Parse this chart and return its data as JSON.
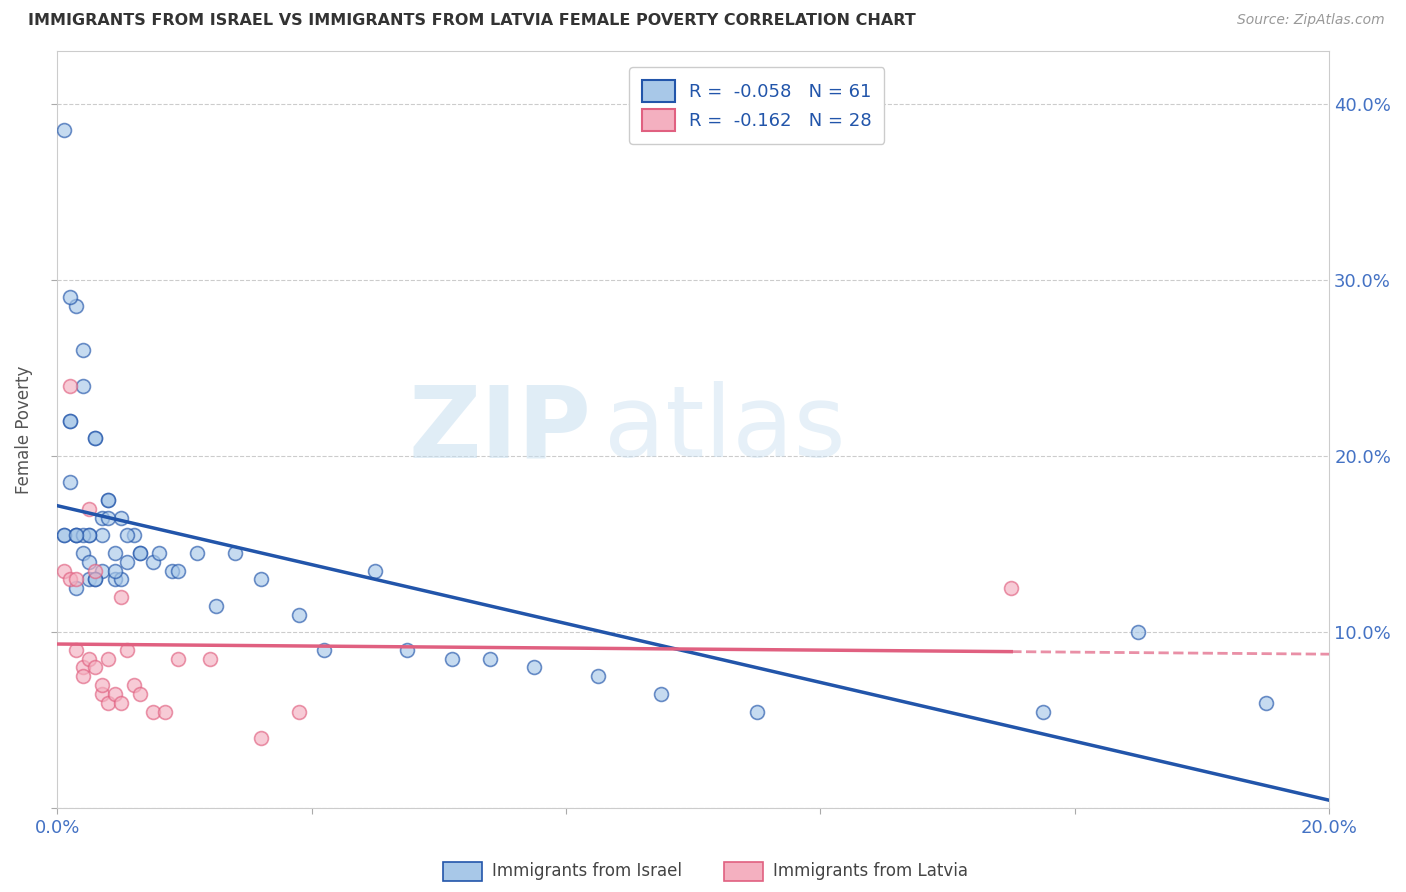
{
  "title": "IMMIGRANTS FROM ISRAEL VS IMMIGRANTS FROM LATVIA FEMALE POVERTY CORRELATION CHART",
  "source": "Source: ZipAtlas.com",
  "ylabel": "Female Poverty",
  "r_israel": -0.058,
  "n_israel": 61,
  "r_latvia": -0.162,
  "n_latvia": 28,
  "color_israel": "#a8c8e8",
  "color_latvia": "#f4b0c0",
  "color_israel_line": "#2255aa",
  "color_latvia_line": "#e06080",
  "watermark_zip": "ZIP",
  "watermark_atlas": "atlas",
  "israel_x": [
    0.005,
    0.012,
    0.008,
    0.01,
    0.007,
    0.009,
    0.006,
    0.011,
    0.013,
    0.003,
    0.002,
    0.004,
    0.015,
    0.018,
    0.002,
    0.003,
    0.004,
    0.001,
    0.002,
    0.001,
    0.003,
    0.005,
    0.007,
    0.006,
    0.008,
    0.004,
    0.003,
    0.002,
    0.005,
    0.006,
    0.001,
    0.009,
    0.01,
    0.007,
    0.008,
    0.003,
    0.004,
    0.005,
    0.006,
    0.009,
    0.011,
    0.013,
    0.016,
    0.019,
    0.022,
    0.025,
    0.028,
    0.032,
    0.038,
    0.042,
    0.05,
    0.055,
    0.062,
    0.068,
    0.075,
    0.085,
    0.095,
    0.11,
    0.155,
    0.17,
    0.19
  ],
  "israel_y": [
    0.13,
    0.155,
    0.175,
    0.165,
    0.155,
    0.145,
    0.21,
    0.155,
    0.145,
    0.285,
    0.29,
    0.26,
    0.14,
    0.135,
    0.22,
    0.155,
    0.24,
    0.385,
    0.22,
    0.155,
    0.155,
    0.155,
    0.135,
    0.21,
    0.175,
    0.155,
    0.125,
    0.185,
    0.155,
    0.13,
    0.155,
    0.13,
    0.13,
    0.165,
    0.165,
    0.155,
    0.145,
    0.14,
    0.13,
    0.135,
    0.14,
    0.145,
    0.145,
    0.135,
    0.145,
    0.115,
    0.145,
    0.13,
    0.11,
    0.09,
    0.135,
    0.09,
    0.085,
    0.085,
    0.08,
    0.075,
    0.065,
    0.055,
    0.055,
    0.1,
    0.06
  ],
  "latvia_x": [
    0.001,
    0.002,
    0.002,
    0.003,
    0.003,
    0.004,
    0.004,
    0.005,
    0.005,
    0.006,
    0.006,
    0.007,
    0.007,
    0.008,
    0.008,
    0.009,
    0.01,
    0.01,
    0.011,
    0.012,
    0.013,
    0.015,
    0.017,
    0.019,
    0.024,
    0.032,
    0.038,
    0.15
  ],
  "latvia_y": [
    0.135,
    0.24,
    0.13,
    0.13,
    0.09,
    0.08,
    0.075,
    0.085,
    0.17,
    0.135,
    0.08,
    0.065,
    0.07,
    0.06,
    0.085,
    0.065,
    0.12,
    0.06,
    0.09,
    0.07,
    0.065,
    0.055,
    0.055,
    0.085,
    0.085,
    0.04,
    0.055,
    0.125
  ],
  "xmin": 0.0,
  "xmax": 0.2,
  "ymin": 0.0,
  "ymax": 0.43,
  "yticks": [
    0.0,
    0.1,
    0.2,
    0.3,
    0.4
  ],
  "ytick_labels": [
    "",
    "10.0%",
    "20.0%",
    "30.0%",
    "40.0%"
  ],
  "xtick_positions": [
    0.0,
    0.04,
    0.08,
    0.12,
    0.16,
    0.2
  ],
  "xtick_labels_show": [
    "0.0%",
    "",
    "",
    "",
    "",
    "20.0%"
  ],
  "grid_color": "#cccccc",
  "background_color": "#ffffff",
  "title_color": "#333333",
  "axis_label_color": "#555555",
  "tick_color": "#4472c4",
  "marker_size": 100
}
